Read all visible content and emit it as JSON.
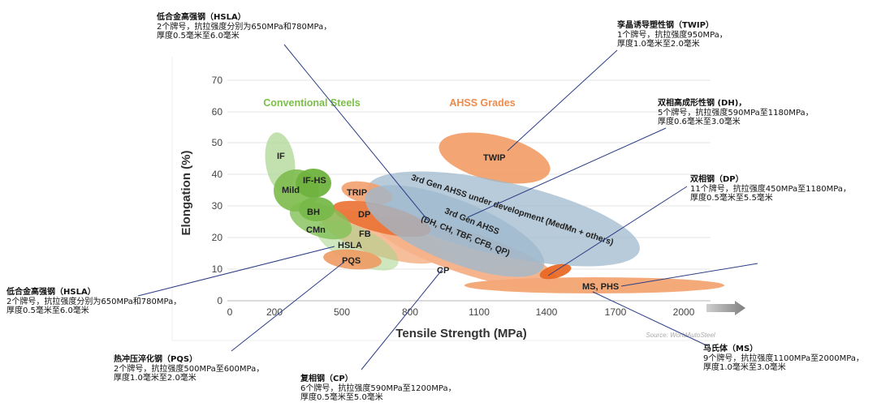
{
  "axes": {
    "x_label": "Tensile Strength (MPa)",
    "y_label": "Elongation (%)",
    "x_ticks": [
      "0",
      "200",
      "500",
      "800",
      "1100",
      "1400",
      "1700",
      "2000"
    ],
    "y_ticks": [
      "0",
      "10",
      "20",
      "30",
      "40",
      "50",
      "60",
      "70"
    ],
    "source": "Source: WorldAutoSteel"
  },
  "groups": {
    "conventional": "Conventional Steels",
    "ahss": "AHSS Grades"
  },
  "colors": {
    "conventional": "#6aad3d",
    "ahss": "#f0a070",
    "gen3": "#8aaac4",
    "highlight": "#e8641e",
    "grid": "#e6e6e6",
    "leader": "#2c3e86",
    "arrow": "#7f7f7f"
  },
  "regions": {
    "if": "IF",
    "mild": "Mild",
    "if_hs": "IF-HS",
    "bh": "BH",
    "cmn": "CMn",
    "hsla": "HSLA",
    "pqs": "PQS",
    "trip": "TRIP",
    "dp": "DP",
    "fb": "FB",
    "cp": "CP",
    "twip": "TWIP",
    "ms_phs": "MS, PHS",
    "gen3_dev": "3rd Gen AHSS under development (MedMn + others)",
    "gen3_l1": "3rd Gen AHSS",
    "gen3_l2": "(DH, CH, TBF, CFB, QP)"
  },
  "annotations": {
    "hsla_top": {
      "title": "低合金高强钢（HSLA）",
      "lines": [
        "2个牌号，抗拉强度分别为650MPa和780MPa，",
        "厚度0.5毫米至6.0毫米"
      ]
    },
    "twip": {
      "title": "孪晶诱导塑性钢（TWIP）",
      "lines": [
        "1个牌号，抗拉强度950MPa，",
        "厚度1.0毫米至2.0毫米"
      ]
    },
    "dh": {
      "title": "双相高成形性钢 (DH)，",
      "lines": [
        "5个牌号，抗拉强度590MPa至1180MPa，",
        "厚度0.6毫米至3.0毫米"
      ]
    },
    "dp": {
      "title": "双相钢（DP）",
      "lines": [
        "11个牌号，抗拉强度450MPa至1180MPa，",
        "厚度0.5毫米至5.5毫米"
      ]
    },
    "hsla_left": {
      "title": "低合金高强钢（HSLA）",
      "lines": [
        "2个牌号，抗拉强度分别为650MPa和780MPa，",
        "厚度0.5毫米至6.0毫米"
      ]
    },
    "pqs": {
      "title": "热冲压淬化钢（PQS）",
      "lines": [
        "2个牌号，抗拉强度500MPa至600MPa，",
        "厚度1.0毫米至2.0毫米"
      ]
    },
    "cp": {
      "title": "复相钢（CP）",
      "lines": [
        "6个牌号，抗拉强度590MPa至1200MPa，",
        "厚度0.5毫米至5.0毫米"
      ]
    },
    "ms": {
      "title": "马氏体（MS）",
      "lines": [
        "9个牌号，抗拉强度1100MPa至2000MPa，",
        "厚度1.0毫米至3.0毫米"
      ]
    }
  }
}
